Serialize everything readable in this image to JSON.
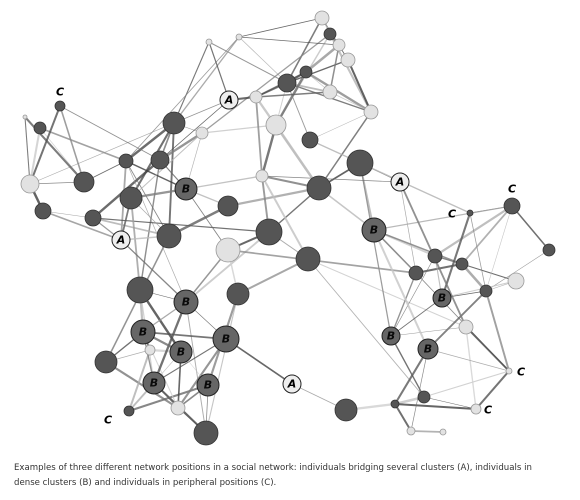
{
  "nodes": [
    {
      "label": "A"
    },
    {
      "label": "A"
    },
    {
      "label": "A"
    },
    {
      "label": "A"
    },
    {
      "label": "B"
    },
    {
      "label": "B"
    },
    {
      "label": "B"
    },
    {
      "label": "B"
    },
    {
      "label": "B"
    },
    {
      "label": "B"
    },
    {
      "label": "B"
    },
    {
      "label": "B"
    },
    {
      "label": "B"
    },
    {
      "label": "B"
    },
    {
      "label": "B"
    },
    {
      "label": "C"
    },
    {
      "label": "C"
    },
    {
      "label": "C"
    },
    {
      "label": "C"
    },
    {
      "label": "C"
    },
    {
      "label": "C"
    }
  ],
  "caption": "Examples of three different network positions in a social network: individuals bridging several clusters (A), individuals in dense clusters (B) and individuals in peripheral positions (C)."
}
